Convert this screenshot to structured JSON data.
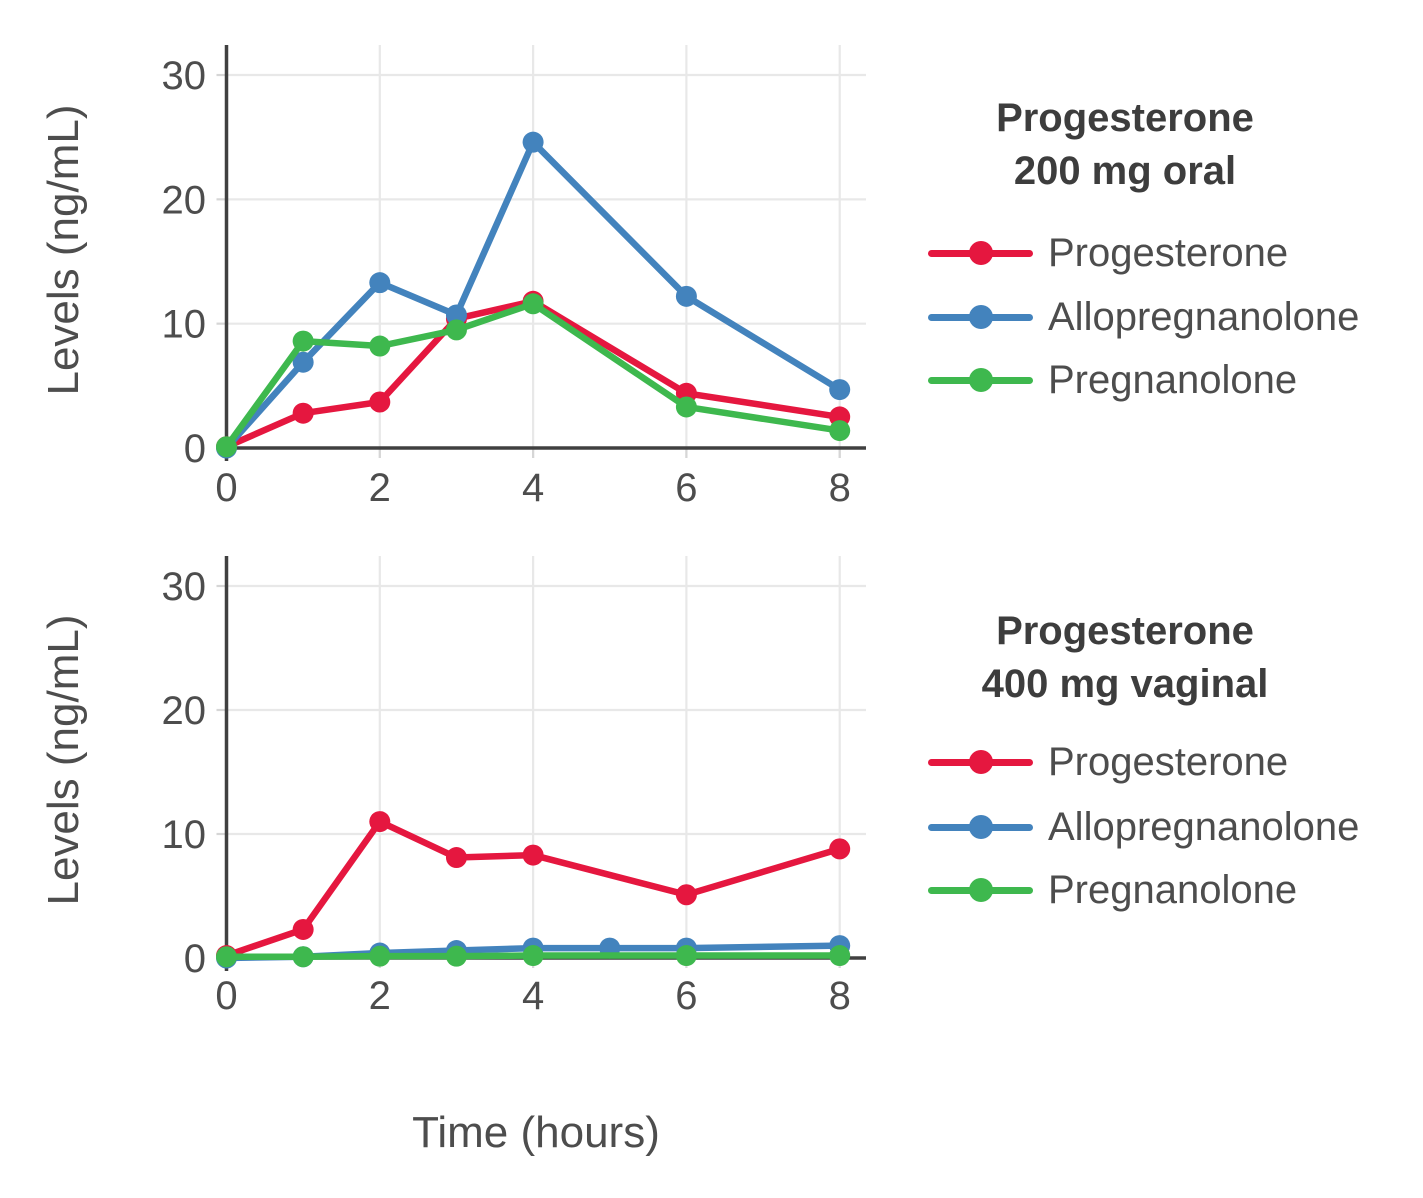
{
  "styles": {
    "background": "#ffffff",
    "text_color": "#4d4d4d",
    "title_color": "#3d3d3d",
    "axis_color": "#404040",
    "grid_color": "#e8e8e8",
    "tick_color": "#d6d6d6"
  },
  "chart_data": [
    {
      "type": "line",
      "title_lines": [
        "Progesterone",
        "200 mg oral"
      ],
      "xlabel": "Time (hours)",
      "ylabel": "Levels (ng/mL)",
      "xlim": [
        0,
        8.35
      ],
      "ylim": [
        0,
        32.4
      ],
      "xticks": [
        0,
        2,
        4,
        6,
        8
      ],
      "yticks": [
        0,
        10,
        20,
        30
      ],
      "grid": true,
      "legend_position": "right",
      "series": [
        {
          "name": "Progesterone",
          "color": "#e5173f",
          "x": [
            0,
            1,
            2,
            3,
            4,
            6,
            8
          ],
          "values": [
            0.1,
            2.8,
            3.7,
            10.4,
            11.8,
            4.4,
            2.5
          ]
        },
        {
          "name": "Allopregnanolone",
          "color": "#4383bd",
          "x": [
            0,
            1,
            2,
            3,
            4,
            6,
            8
          ],
          "values": [
            0.0,
            6.9,
            13.3,
            10.7,
            24.6,
            12.2,
            4.7
          ]
        },
        {
          "name": "Pregnanolone",
          "color": "#3eb84e",
          "x": [
            0,
            1,
            2,
            3,
            4,
            6,
            8
          ],
          "values": [
            0.1,
            8.6,
            8.2,
            9.5,
            11.6,
            3.3,
            1.4
          ]
        }
      ]
    },
    {
      "type": "line",
      "title_lines": [
        "Progesterone",
        "400 mg vaginal"
      ],
      "xlabel": "Time (hours)",
      "ylabel": "Levels (ng/mL)",
      "xlim": [
        0,
        8.35
      ],
      "ylim": [
        0,
        32.4
      ],
      "xticks": [
        0,
        2,
        4,
        6,
        8
      ],
      "yticks": [
        0,
        10,
        20,
        30
      ],
      "grid": true,
      "legend_position": "right",
      "series": [
        {
          "name": "Progesterone",
          "color": "#e5173f",
          "x": [
            0,
            1,
            2,
            3,
            4,
            6,
            8
          ],
          "values": [
            0.2,
            2.3,
            11.0,
            8.1,
            8.3,
            5.1,
            8.8
          ]
        },
        {
          "name": "Allopregnanolone",
          "color": "#4383bd",
          "x": [
            0,
            1,
            2,
            3,
            4,
            5,
            6,
            8
          ],
          "values": [
            0.0,
            0.1,
            0.4,
            0.6,
            0.8,
            0.8,
            0.8,
            1.0
          ]
        },
        {
          "name": "Pregnanolone",
          "color": "#3eb84e",
          "x": [
            0,
            1,
            2,
            3,
            4,
            6,
            8
          ],
          "values": [
            0.1,
            0.1,
            0.15,
            0.15,
            0.2,
            0.2,
            0.2
          ]
        }
      ]
    }
  ]
}
